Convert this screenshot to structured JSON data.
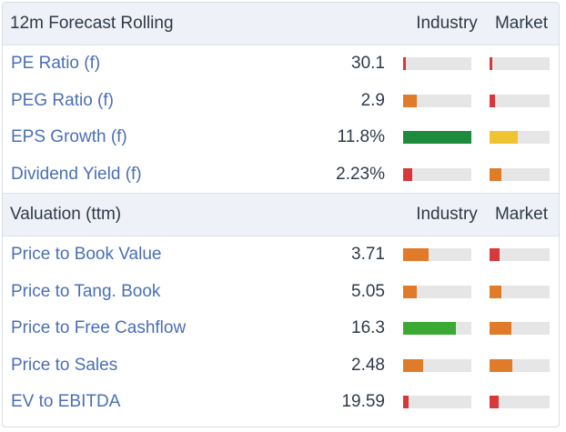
{
  "sections": [
    {
      "title": "12m Forecast Rolling",
      "industry_label": "Industry",
      "market_label": "Market",
      "rows": [
        {
          "label": "PE Ratio (f)",
          "value": "30.1",
          "industry": {
            "level": 0.04,
            "color": "#d9383a"
          },
          "market": {
            "level": 0.04,
            "color": "#d9383a"
          }
        },
        {
          "label": "PEG Ratio (f)",
          "value": "2.9",
          "industry": {
            "level": 0.2,
            "color": "#e07b2a"
          },
          "market": {
            "level": 0.09,
            "color": "#d9383a"
          }
        },
        {
          "label": "EPS Growth (f)",
          "value": "11.8%",
          "industry": {
            "level": 1.0,
            "color": "#1e8a3c"
          },
          "market": {
            "level": 0.47,
            "color": "#f0c330"
          }
        },
        {
          "label": "Dividend Yield (f)",
          "value": "2.23%",
          "industry": {
            "level": 0.13,
            "color": "#d9383a"
          },
          "market": {
            "level": 0.2,
            "color": "#e07b2a"
          }
        }
      ]
    },
    {
      "title": "Valuation (ttm)",
      "industry_label": "Industry",
      "market_label": "Market",
      "rows": [
        {
          "label": "Price to Book Value",
          "value": "3.71",
          "industry": {
            "level": 0.37,
            "color": "#e07b2a"
          },
          "market": {
            "level": 0.17,
            "color": "#d9383a"
          }
        },
        {
          "label": "Price to Tang. Book",
          "value": "5.05",
          "industry": {
            "level": 0.2,
            "color": "#e07b2a"
          },
          "market": {
            "level": 0.2,
            "color": "#e07b2a"
          }
        },
        {
          "label": "Price to Free Cashflow",
          "value": "16.3",
          "industry": {
            "level": 0.77,
            "color": "#3aaa35"
          },
          "market": {
            "level": 0.36,
            "color": "#e07b2a"
          }
        },
        {
          "label": "Price to Sales",
          "value": "2.48",
          "industry": {
            "level": 0.29,
            "color": "#e07b2a"
          },
          "market": {
            "level": 0.38,
            "color": "#e07b2a"
          }
        },
        {
          "label": "EV to EBITDA",
          "value": "19.59",
          "industry": {
            "level": 0.08,
            "color": "#d9383a"
          },
          "market": {
            "level": 0.15,
            "color": "#d9383a"
          }
        }
      ]
    }
  ]
}
